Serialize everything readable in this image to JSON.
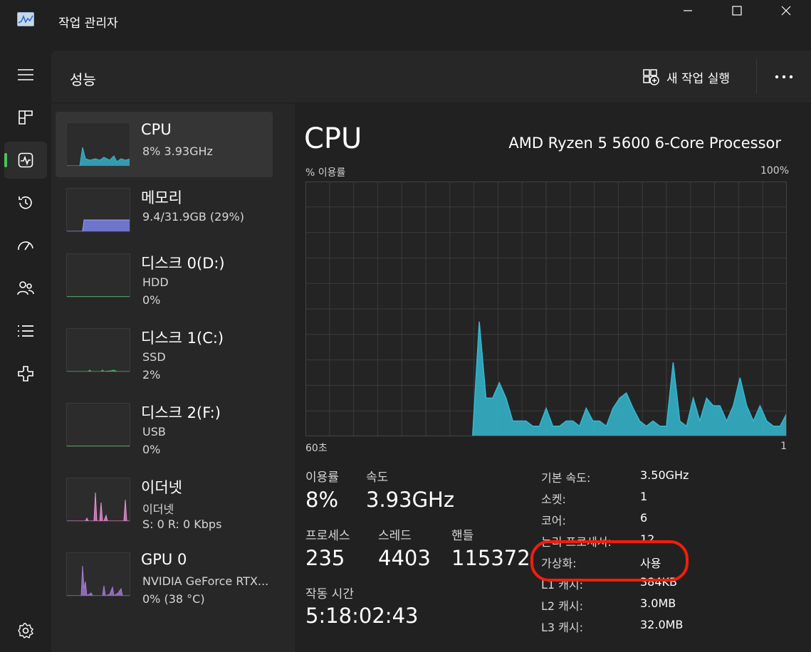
{
  "window": {
    "title": "작업 관리자",
    "app_icon": "task-manager-icon",
    "controls": [
      "minimize-icon",
      "maximize-icon",
      "close-icon"
    ]
  },
  "nav": {
    "items": [
      {
        "icon": "hamburger-menu-icon"
      },
      {
        "icon": "processes-icon"
      },
      {
        "icon": "performance-icon",
        "active": true
      },
      {
        "icon": "app-history-icon"
      },
      {
        "icon": "startup-apps-icon"
      },
      {
        "icon": "users-icon"
      },
      {
        "icon": "details-icon"
      },
      {
        "icon": "services-icon"
      }
    ],
    "settings_icon": "settings-icon",
    "accent": "#4cc25a"
  },
  "header": {
    "title": "성능",
    "new_task_label": "새 작업 실행",
    "new_task_icon": "new-task-icon",
    "more_icon": "more-dots-icon"
  },
  "devices": [
    {
      "name": "CPU",
      "line1": "8%  3.93GHz",
      "line2": "",
      "color": "#35b8d1",
      "active": true
    },
    {
      "name": "메모리",
      "line1": "9.4/31.9GB (29%)",
      "line2": "",
      "color": "#7a83e6"
    },
    {
      "name": "디스크 0(D:)",
      "line1": "HDD",
      "line2": "0%",
      "color": "#4ec26e"
    },
    {
      "name": "디스크 1(C:)",
      "line1": "SSD",
      "line2": "2%",
      "color": "#4ec26e"
    },
    {
      "name": "디스크 2(F:)",
      "line1": "USB",
      "line2": "0%",
      "color": "#4ec26e"
    },
    {
      "name": "이더넷",
      "line1": "이더넷",
      "line2": "S: 0  R: 0 Kbps",
      "color": "#e78fd1"
    },
    {
      "name": "GPU 0",
      "line1": "NVIDIA GeForce RTX...",
      "line2": "0% (38 °C)",
      "color": "#a57ad8"
    }
  ],
  "detail": {
    "title": "CPU",
    "model": "AMD Ryzen 5 5600 6-Core Processor",
    "graph_label_left": "% 이용률",
    "graph_label_right": "100%",
    "graph_axis_left": "60초",
    "graph_axis_right": "1",
    "graph_color": "#35b8d1",
    "utilization_label": "이용률",
    "utilization": "8%",
    "speed_label": "속도",
    "speed": "3.93GHz",
    "processes_label": "프로세스",
    "processes": "235",
    "threads_label": "스레드",
    "threads": "4403",
    "handles_label": "핸들",
    "handles": "115372",
    "uptime_label": "작동 시간",
    "uptime": "5:18:02:43",
    "specs": [
      {
        "key": "기본 속도:",
        "value": "3.50GHz"
      },
      {
        "key": "소켓:",
        "value": "1"
      },
      {
        "key": "코어:",
        "value": "6"
      },
      {
        "key": "논리 프로세서:",
        "value": "12"
      },
      {
        "key": "가상화:",
        "value": "사용"
      },
      {
        "key": "L1 캐시:",
        "value": "384KB"
      },
      {
        "key": "L2 캐시:",
        "value": "3.0MB"
      },
      {
        "key": "L3 캐시:",
        "value": "32.0MB"
      }
    ],
    "annotation_color": "#f21d0c"
  },
  "chart_data": {
    "type": "area",
    "ylabel": "% 이용률",
    "ylim": [
      0,
      100
    ],
    "xlim": [
      60,
      1
    ],
    "x_unit": "초",
    "grid": true,
    "values": [
      0,
      0,
      0,
      0,
      0,
      0,
      0,
      0,
      0,
      0,
      0,
      0,
      0,
      0,
      0,
      0,
      0,
      0,
      0,
      0,
      0,
      0,
      0,
      0,
      0,
      0,
      45,
      15,
      15,
      21,
      15,
      6,
      6,
      6,
      4,
      4,
      11,
      4,
      4,
      6,
      6,
      4,
      11,
      6,
      6,
      4,
      11,
      15,
      17,
      11,
      6,
      4,
      6,
      4,
      4,
      29,
      6,
      4,
      15,
      6,
      15,
      12,
      12,
      6,
      12,
      23,
      12,
      6,
      12,
      6,
      4,
      4,
      9
    ]
  }
}
